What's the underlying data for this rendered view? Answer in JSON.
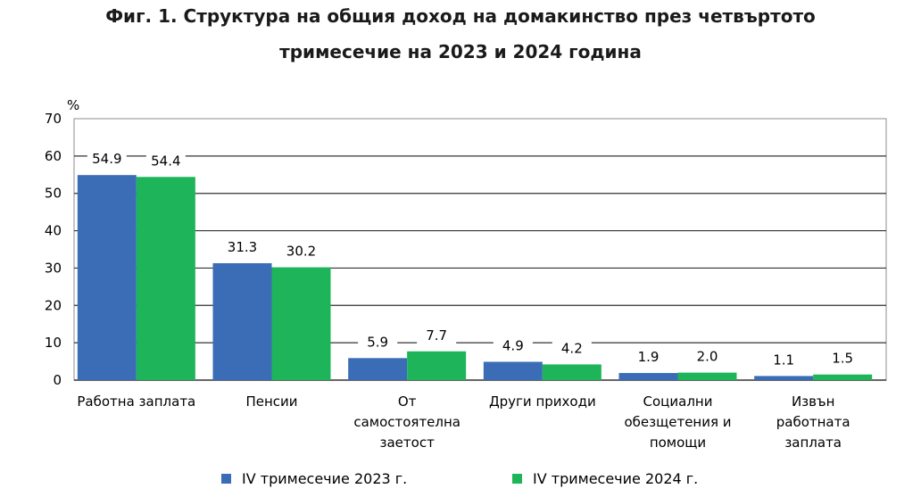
{
  "title_line1": "Фиг. 1. Структура на общия доход на домакинство през четвъртото",
  "title_line2": "тримесечие на 2023 и 2024 година",
  "chart_data": {
    "type": "bar",
    "unit_label": "%",
    "ylim": [
      0,
      70
    ],
    "yticks": [
      0,
      10,
      20,
      30,
      40,
      50,
      60,
      70
    ],
    "grid": true,
    "legend_position": "bottom",
    "categories": [
      [
        "Работна заплата"
      ],
      [
        "Пенсии"
      ],
      [
        "От",
        "самостоятелна",
        "заетост"
      ],
      [
        "Други приходи"
      ],
      [
        "Социални",
        "обезщетения и",
        "помощи"
      ],
      [
        "Извън",
        "работната",
        "заплата"
      ]
    ],
    "series": [
      {
        "name": "IV тримесечие 2023 г.",
        "color": "#3a6db5",
        "values": [
          54.9,
          31.3,
          5.9,
          4.9,
          1.9,
          1.1
        ],
        "labels": [
          "54.9",
          "31.3",
          "5.9",
          "4.9",
          "1.9",
          "1.1"
        ]
      },
      {
        "name": "IV тримесечие 2024 г.",
        "color": "#1db45a",
        "values": [
          54.4,
          30.2,
          7.7,
          4.2,
          2.0,
          1.5
        ],
        "labels": [
          "54.4",
          "30.2",
          "7.7",
          "4.2",
          "2.0",
          "1.5"
        ]
      }
    ]
  }
}
